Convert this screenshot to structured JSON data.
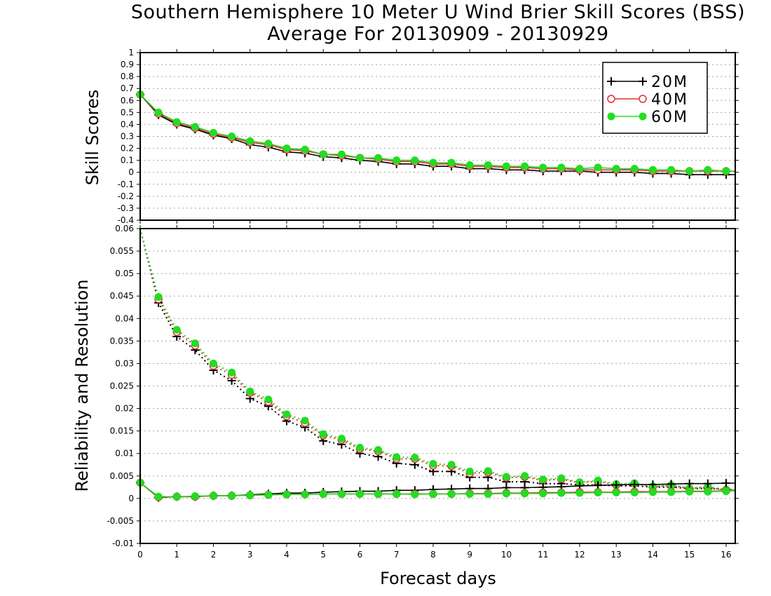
{
  "chart_data": [
    {
      "type": "line",
      "title": "Southern Hemisphere 10 Meter U Wind Brier Skill Scores (BSS)",
      "subtitle": "Average For 20130909 - 20130929",
      "xlabel": "Forecast days",
      "ylabel": "Skill Scores",
      "xlim": [
        0,
        16.25
      ],
      "ylim": [
        -0.4,
        1
      ],
      "y_ticks": [
        "-0.4",
        "-0.3",
        "-0.2",
        "-0.1",
        "0",
        "0.1",
        "0.2",
        "0.3",
        "0.4",
        "0.5",
        "0.6",
        "0.7",
        "0.8",
        "0.9",
        "1"
      ],
      "grid": true,
      "legend": "top-right",
      "x": [
        0,
        0.5,
        1,
        1.5,
        2,
        2.5,
        3,
        3.5,
        4,
        4.5,
        5,
        5.5,
        6,
        6.5,
        7,
        7.5,
        8,
        8.5,
        9,
        9.5,
        10,
        10.5,
        11,
        11.5,
        12,
        12.5,
        13,
        13.5,
        14,
        14.5,
        15,
        15.5,
        16,
        16.25
      ],
      "series": [
        {
          "name": "20M",
          "color": "#000000",
          "marker": "plus",
          "values": [
            0.65,
            0.48,
            0.4,
            0.36,
            0.31,
            0.28,
            0.23,
            0.21,
            0.17,
            0.16,
            0.13,
            0.12,
            0.1,
            0.09,
            0.07,
            0.07,
            0.05,
            0.05,
            0.03,
            0.03,
            0.02,
            0.02,
            0.01,
            0.01,
            0.01,
            0.0,
            0.0,
            0.0,
            -0.01,
            -0.01,
            -0.02,
            -0.02,
            -0.02,
            -0.02
          ]
        },
        {
          "name": "40M",
          "color": "#e03030",
          "marker": "open-circle",
          "values": [
            0.65,
            0.49,
            0.41,
            0.37,
            0.32,
            0.29,
            0.25,
            0.23,
            0.19,
            0.18,
            0.15,
            0.14,
            0.12,
            0.11,
            0.09,
            0.09,
            0.07,
            0.07,
            0.05,
            0.05,
            0.04,
            0.04,
            0.03,
            0.03,
            0.02,
            0.02,
            0.02,
            0.02,
            0.01,
            0.01,
            0.01,
            0.01,
            0.01,
            0.01
          ]
        },
        {
          "name": "60M",
          "color": "#22dd22",
          "marker": "filled-circle",
          "values": [
            0.65,
            0.5,
            0.42,
            0.38,
            0.33,
            0.3,
            0.26,
            0.24,
            0.2,
            0.19,
            0.15,
            0.15,
            0.12,
            0.12,
            0.1,
            0.1,
            0.08,
            0.08,
            0.06,
            0.06,
            0.05,
            0.05,
            0.04,
            0.04,
            0.03,
            0.04,
            0.03,
            0.03,
            0.02,
            0.02,
            0.01,
            0.02,
            0.01,
            0.01
          ]
        }
      ]
    },
    {
      "type": "line",
      "xlabel": "Forecast days",
      "ylabel": "Reliability and Resolution",
      "xlim": [
        0,
        16.25
      ],
      "ylim": [
        -0.01,
        0.06
      ],
      "y_ticks": [
        "-0.01",
        "-0.005",
        "0",
        "0.005",
        "0.01",
        "0.015",
        "0.02",
        "0.025",
        "0.03",
        "0.035",
        "0.04",
        "0.045",
        "0.05",
        "0.055",
        "0.06"
      ],
      "x_ticks": [
        "0",
        "1",
        "2",
        "3",
        "4",
        "5",
        "6",
        "7",
        "8",
        "9",
        "10",
        "11",
        "12",
        "13",
        "14",
        "15",
        "16"
      ],
      "grid": true,
      "x": [
        0,
        0.5,
        1,
        1.5,
        2,
        2.5,
        3,
        3.5,
        4,
        4.5,
        5,
        5.5,
        6,
        6.5,
        7,
        7.5,
        8,
        8.5,
        9,
        9.5,
        10,
        10.5,
        11,
        11.5,
        12,
        12.5,
        13,
        13.5,
        14,
        14.5,
        15,
        15.5,
        16,
        16.25
      ],
      "series": [
        {
          "name": "20M",
          "color": "#000000",
          "marker": "plus",
          "line": "dotted",
          "values": [
            0.06,
            0.0435,
            0.036,
            0.033,
            0.0285,
            0.0262,
            0.0222,
            0.0205,
            0.0172,
            0.0158,
            0.0128,
            0.012,
            0.01,
            0.0093,
            0.0078,
            0.0075,
            0.006,
            0.006,
            0.0047,
            0.0047,
            0.0037,
            0.0037,
            0.0033,
            0.0033,
            0.003,
            0.003,
            0.0028,
            0.0028,
            0.0025,
            0.0025,
            0.0022,
            0.0022,
            0.002,
            0.002
          ]
        },
        {
          "name": "40M",
          "color": "#e03030",
          "marker": "open-circle",
          "line": "dotted",
          "values": [
            0.06,
            0.0443,
            0.037,
            0.034,
            0.0295,
            0.0275,
            0.0235,
            0.0215,
            0.0183,
            0.0168,
            0.014,
            0.013,
            0.011,
            0.0105,
            0.0088,
            0.0088,
            0.0073,
            0.0072,
            0.0056,
            0.0058,
            0.0046,
            0.0048,
            0.004,
            0.0043,
            0.0035,
            0.0038,
            0.003,
            0.0033,
            0.0026,
            0.0029,
            0.0022,
            0.0025,
            0.0018,
            0.0019
          ]
        },
        {
          "name": "60M",
          "color": "#22dd22",
          "marker": "filled-circle",
          "line": "dotted",
          "values": [
            0.06,
            0.0448,
            0.0375,
            0.0345,
            0.03,
            0.028,
            0.0238,
            0.022,
            0.0187,
            0.0173,
            0.0143,
            0.0133,
            0.0113,
            0.0108,
            0.0092,
            0.0091,
            0.0077,
            0.0075,
            0.006,
            0.0061,
            0.0048,
            0.005,
            0.0042,
            0.0045,
            0.0036,
            0.004,
            0.0032,
            0.0034,
            0.0027,
            0.003,
            0.0023,
            0.0026,
            0.002,
            0.002
          ]
        },
        {
          "name": "20M",
          "color": "#000000",
          "marker": "plus",
          "line": "solid",
          "values": [
            0.0035,
            0.0002,
            0.0004,
            0.0004,
            0.0006,
            0.0006,
            0.0008,
            0.001,
            0.0012,
            0.0012,
            0.0014,
            0.0015,
            0.0016,
            0.0016,
            0.0018,
            0.0018,
            0.002,
            0.0021,
            0.0022,
            0.0022,
            0.0024,
            0.0024,
            0.0025,
            0.0026,
            0.0028,
            0.0029,
            0.003,
            0.0031,
            0.0031,
            0.0032,
            0.0033,
            0.0033,
            0.0034,
            0.0034
          ]
        },
        {
          "name": "40M",
          "color": "#e03030",
          "marker": "open-circle",
          "line": "solid",
          "values": [
            0.0035,
            0.0003,
            0.0004,
            0.0004,
            0.0006,
            0.0006,
            0.0007,
            0.0008,
            0.0009,
            0.0009,
            0.001,
            0.001,
            0.001,
            0.001,
            0.001,
            0.001,
            0.001,
            0.001,
            0.0011,
            0.0011,
            0.0012,
            0.0012,
            0.0013,
            0.0013,
            0.0014,
            0.0014,
            0.0014,
            0.0015,
            0.0015,
            0.0015,
            0.0016,
            0.0016,
            0.0017,
            0.0017
          ]
        },
        {
          "name": "60M",
          "color": "#22dd22",
          "marker": "filled-circle",
          "line": "solid",
          "values": [
            0.0035,
            0.0004,
            0.0004,
            0.0005,
            0.0006,
            0.0006,
            0.0007,
            0.0008,
            0.0009,
            0.0009,
            0.001,
            0.001,
            0.001,
            0.001,
            0.001,
            0.0009,
            0.001,
            0.001,
            0.001,
            0.001,
            0.0011,
            0.0011,
            0.0011,
            0.0012,
            0.0012,
            0.0013,
            0.0013,
            0.0013,
            0.0014,
            0.0014,
            0.0015,
            0.0015,
            0.0016,
            0.0017
          ]
        }
      ]
    }
  ]
}
